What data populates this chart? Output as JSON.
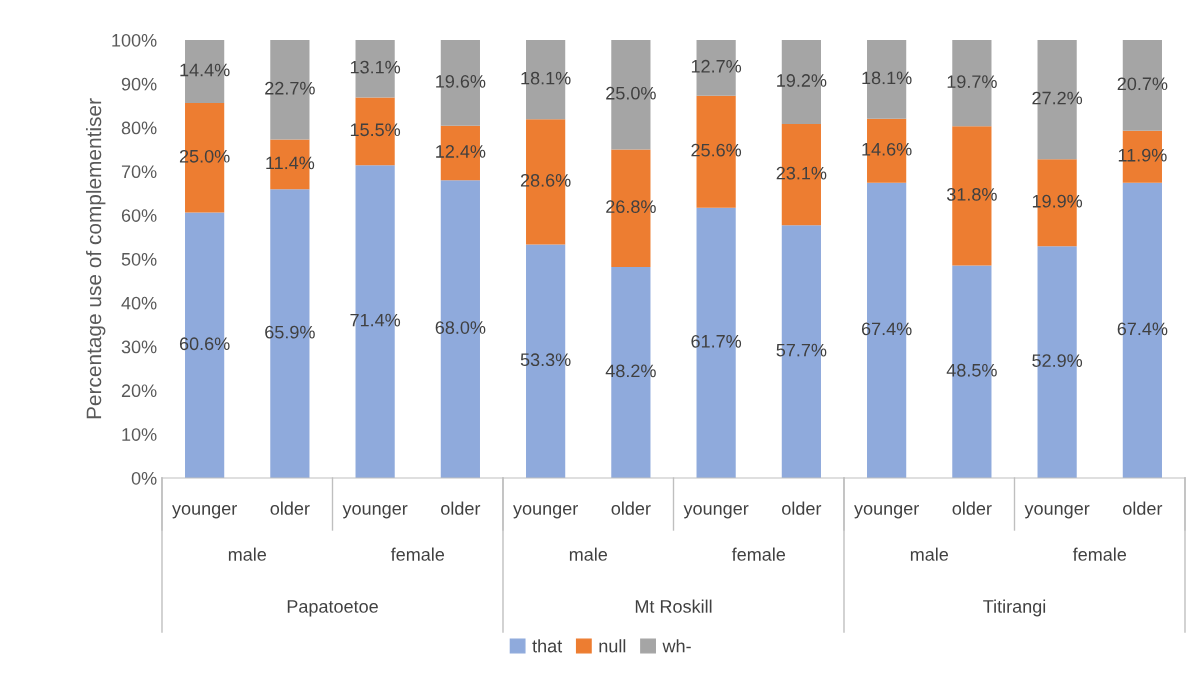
{
  "chart_data": {
    "type": "bar",
    "stacked": true,
    "ylabel": "Percentage use of complementiser",
    "categories": [
      "younger",
      "older",
      "younger",
      "older",
      "younger",
      "older",
      "younger",
      "older",
      "younger",
      "older",
      "younger",
      "older"
    ],
    "annotations": [
      "male",
      "female",
      "male",
      "female",
      "male",
      "female",
      "Papatoetoe",
      "Mt Roskill",
      "Titirangi"
    ],
    "series": [
      {
        "name": "that",
        "color": "#8faadc",
        "values": [
          60.6,
          65.9,
          71.4,
          68.0,
          53.3,
          48.2,
          61.7,
          57.7,
          67.4,
          48.5,
          52.9,
          67.4
        ],
        "value_labels": [
          "60.6%",
          "65.9%",
          "71.4%",
          "68.0%",
          "53.3%",
          "48.2%",
          "61.7%",
          "57.7%",
          "67.4%",
          "48.5%",
          "52.9%",
          "67.4%"
        ]
      },
      {
        "name": "null",
        "color": "#ed7d31",
        "values": [
          25.0,
          11.4,
          15.5,
          12.4,
          28.6,
          26.8,
          25.6,
          23.1,
          14.6,
          31.8,
          19.9,
          11.9
        ],
        "value_labels": [
          "25.0%",
          "11.4%",
          "15.5%",
          "12.4%",
          "28.6%",
          "26.8%",
          "25.6%",
          "23.1%",
          "14.6%",
          "31.8%",
          "19.9%",
          "11.9%"
        ]
      },
      {
        "name": "wh-",
        "color": "#a5a5a5",
        "values": [
          14.4,
          22.7,
          13.1,
          19.6,
          18.1,
          25.0,
          12.7,
          19.2,
          18.1,
          19.7,
          27.2,
          20.7
        ],
        "value_labels": [
          "14.4%",
          "22.7%",
          "13.1%",
          "19.6%",
          "18.1%",
          "25.0%",
          "12.7%",
          "19.2%",
          "18.1%",
          "19.7%",
          "27.2%",
          "20.7%"
        ]
      }
    ],
    "ylim": [
      0,
      100
    ],
    "yticks": [
      {
        "value": 0,
        "label": "0%"
      },
      {
        "value": 10,
        "label": "10%"
      },
      {
        "value": 20,
        "label": "20%"
      },
      {
        "value": 30,
        "label": "30%"
      },
      {
        "value": 40,
        "label": "40%"
      },
      {
        "value": 50,
        "label": "50%"
      },
      {
        "value": 60,
        "label": "60%"
      },
      {
        "value": 70,
        "label": "70%"
      },
      {
        "value": 80,
        "label": "80%"
      },
      {
        "value": 90,
        "label": "90%"
      },
      {
        "value": 100,
        "label": "100%"
      }
    ],
    "grid": false,
    "legend": "bottom"
  }
}
